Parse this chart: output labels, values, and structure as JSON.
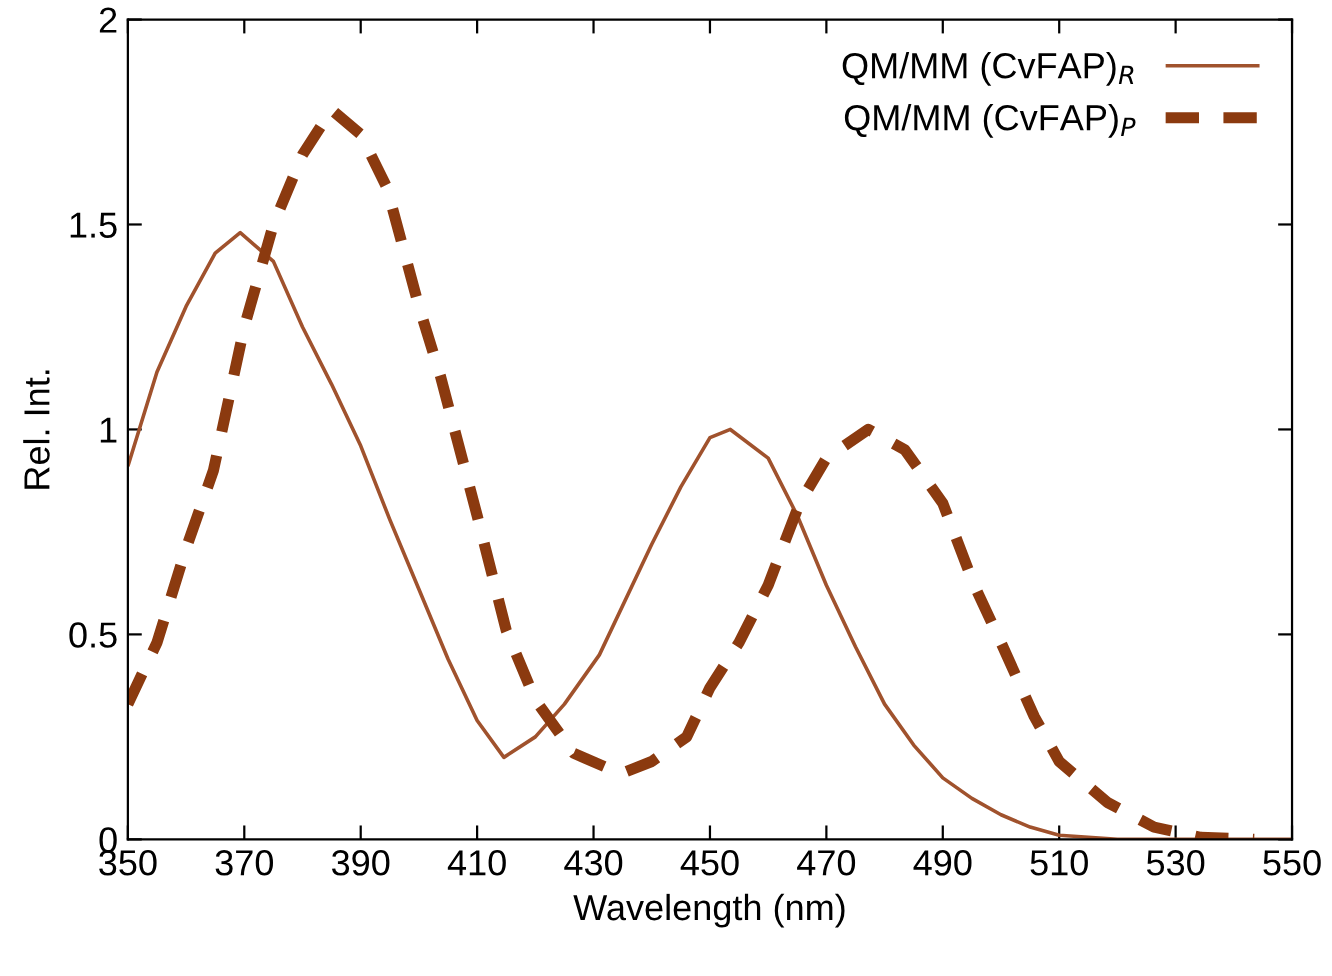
{
  "chart_data": {
    "type": "line",
    "xlabel": "Wavelength (nm)",
    "ylabel": "Rel. Int.",
    "xlim": [
      350,
      550
    ],
    "xticks": [
      350,
      370,
      390,
      410,
      430,
      450,
      470,
      490,
      510,
      530,
      550
    ],
    "ylim": [
      0,
      2
    ],
    "yticks": [
      0,
      0.5,
      1,
      1.5,
      2
    ],
    "grid": false,
    "legend": "top right",
    "series": [
      {
        "name": "QM/MM (CvFAP)$_{R}$",
        "color": "#a0522d",
        "line_style": "solid",
        "x": [
          350,
          355,
          360,
          365,
          369.3,
          375,
          380,
          385,
          390,
          395,
          400,
          405,
          410,
          414.6,
          420,
          425,
          431,
          440,
          445,
          450,
          453.5,
          460,
          465,
          470,
          475,
          480,
          485,
          490,
          495,
          500,
          505,
          510,
          515,
          520,
          550
        ],
        "values": [
          0.91,
          1.14,
          1.3,
          1.43,
          1.48,
          1.41,
          1.25,
          1.11,
          0.96,
          0.78,
          0.61,
          0.44,
          0.29,
          0.2,
          0.25,
          0.33,
          0.45,
          0.72,
          0.86,
          0.98,
          1.0,
          0.93,
          0.79,
          0.62,
          0.47,
          0.33,
          0.23,
          0.15,
          0.1,
          0.06,
          0.03,
          0.01,
          0.005,
          0,
          0
        ]
      },
      {
        "name": "QM/MM (CvFAP)$_{P}$",
        "color": "#8b3a0f",
        "line_style": "dashed",
        "x": [
          350,
          355,
          360,
          364.7,
          370,
          375,
          380,
          385,
          390,
          394.5,
          400,
          403.7,
          410,
          415,
          420,
          426.6,
          434.7,
          440,
          446,
          450,
          455,
          460,
          465.4,
          470,
          477.2,
          483.5,
          490,
          495.4,
          500,
          505.7,
          510,
          518.3,
          526.3,
          534.3,
          543.5
        ],
        "values": [
          0.33,
          0.48,
          0.71,
          0.9,
          1.25,
          1.5,
          1.67,
          1.78,
          1.72,
          1.59,
          1.3,
          1.13,
          0.79,
          0.51,
          0.34,
          0.21,
          0.16,
          0.19,
          0.25,
          0.37,
          0.48,
          0.62,
          0.82,
          0.93,
          1.0,
          0.95,
          0.82,
          0.62,
          0.48,
          0.3,
          0.19,
          0.09,
          0.03,
          0.005,
          0
        ]
      }
    ]
  }
}
